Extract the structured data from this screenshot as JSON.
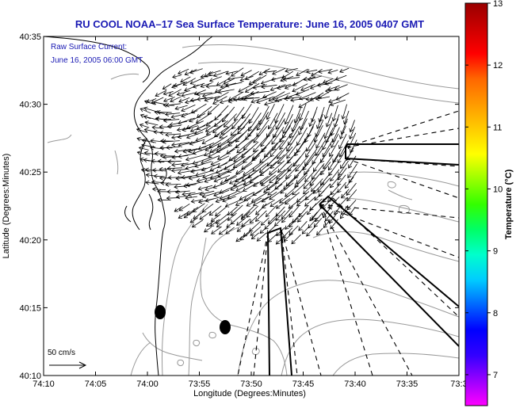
{
  "title": "RU COOL  NOAA–17  Sea Surface Temperature:  June 16, 2005 0407 GMT",
  "legend": {
    "line1": "Raw Surface Current:",
    "line2": "June 16, 2005 06:00 GMT"
  },
  "axes": {
    "xlabel": "Longitude (Degrees:Minutes)",
    "ylabel": "Latitude (Degrees:Minutes)",
    "xticks": [
      "74:10",
      "74:05",
      "74:00",
      "73:55",
      "73:50",
      "73:45",
      "73:40",
      "73:35",
      "73:3"
    ],
    "yticks": [
      "40:35",
      "40:30",
      "40:25",
      "40:20",
      "40:15",
      "40:10"
    ]
  },
  "colorbar": {
    "label": "Temperature (°C)",
    "ticks": [
      "13",
      "12",
      "11",
      "10",
      "9",
      "8",
      "7"
    ],
    "range": [
      6.5,
      13
    ],
    "colors": [
      "#ff00ff",
      "#9900ff",
      "#3300ff",
      "#0000ff",
      "#0066ff",
      "#00ccff",
      "#00ffcc",
      "#00ff66",
      "#33ff00",
      "#99ff00",
      "#ffff00",
      "#ffcc00",
      "#ff9900",
      "#ff6600",
      "#ff0000",
      "#cc0000",
      "#990000"
    ]
  },
  "scale_arrow": {
    "label": "50 cm/s"
  },
  "colors": {
    "title": "#1a1ab4",
    "arrows": "#000000",
    "coast": "#000000",
    "contours": "#999999"
  }
}
